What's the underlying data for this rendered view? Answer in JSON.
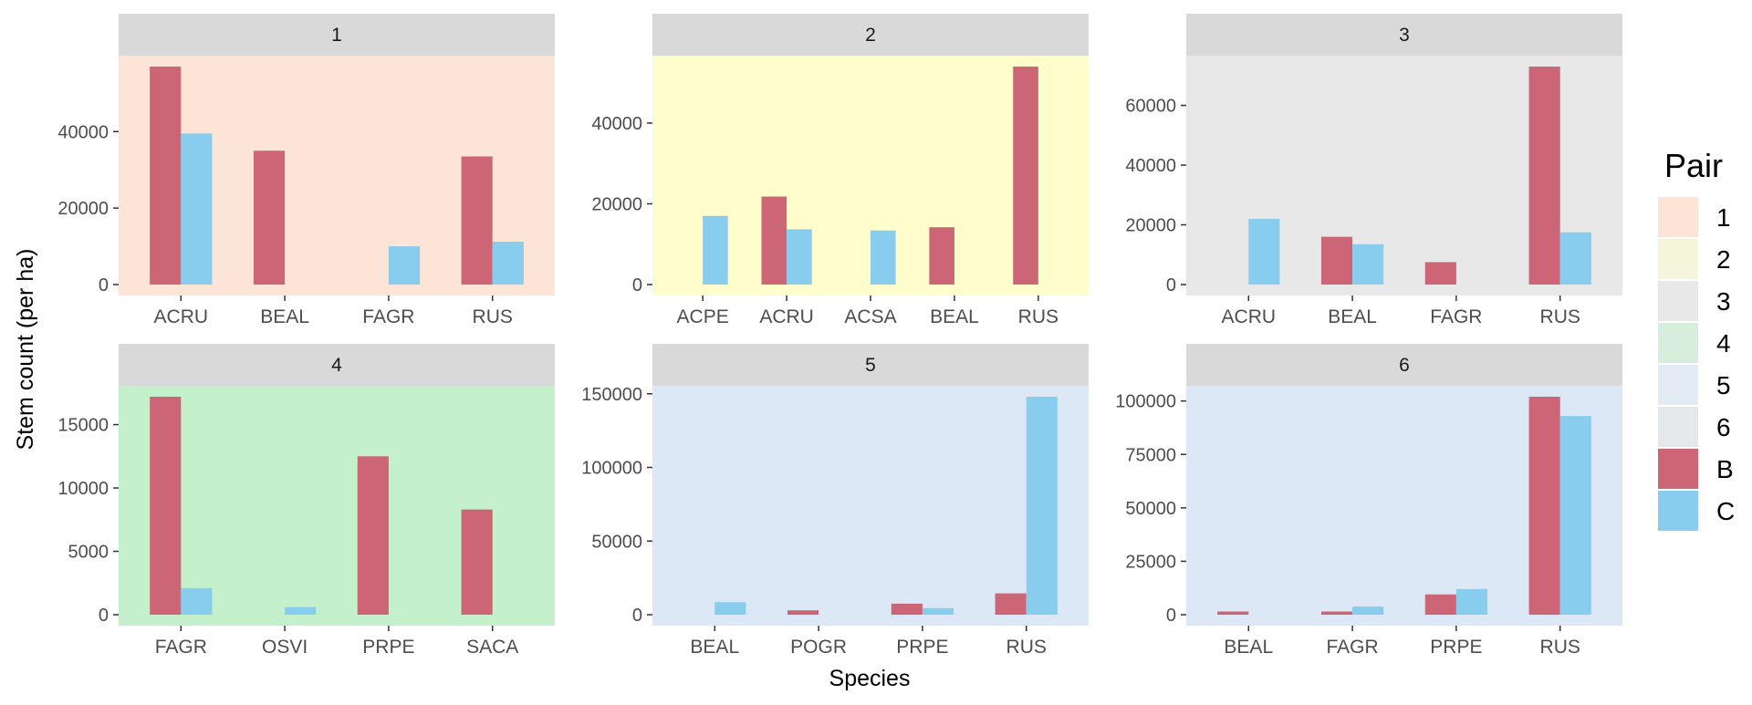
{
  "chart_data": {
    "type": "bar",
    "layout": "facet grid 2 rows x 3 columns, free scales",
    "xlabel": "Species",
    "ylabel": "Stem count (per ha)",
    "legend": {
      "title": "Pair",
      "placement": "right",
      "panel_entries": [
        {
          "label": "1",
          "color": "#FBE3D6"
        },
        {
          "label": "2",
          "color": "#F5F5DC"
        },
        {
          "label": "3",
          "color": "#E8E8E8"
        },
        {
          "label": "4",
          "color": "#D6EEDB"
        },
        {
          "label": "5",
          "color": "#E3EBF4"
        },
        {
          "label": "6",
          "color": "#E5E7EB"
        }
      ],
      "series_entries": [
        {
          "label": "B",
          "color": "#CC6677"
        },
        {
          "label": "C",
          "color": "#88CCEE"
        }
      ]
    },
    "strip_color": "#D9D9D9",
    "panels": [
      {
        "strip": "1",
        "bg": "#FCE4D6",
        "ylim": [
          0,
          57000
        ],
        "yticks": [
          "0",
          "20000",
          "40000"
        ],
        "ytick_values": [
          0,
          20000,
          40000
        ],
        "categories": [
          "ACRU",
          "BEAL",
          "FAGR",
          "RUS"
        ],
        "series": [
          {
            "name": "B",
            "color": "#CC6677",
            "values": [
              57000,
              35000,
              null,
              33500
            ]
          },
          {
            "name": "C",
            "color": "#88CCEE",
            "values": [
              39500,
              null,
              10000,
              11200
            ]
          }
        ]
      },
      {
        "strip": "2",
        "bg": "#FFFDCC",
        "ylim": [
          0,
          54000
        ],
        "yticks": [
          "0",
          "20000",
          "40000"
        ],
        "ytick_values": [
          0,
          20000,
          40000
        ],
        "categories": [
          "ACPE",
          "ACRU",
          "ACSA",
          "BEAL",
          "RUS"
        ],
        "series": [
          {
            "name": "B",
            "color": "#CC6677",
            "values": [
              null,
              21800,
              null,
              14200,
              54000
            ]
          },
          {
            "name": "C",
            "color": "#88CCEE",
            "values": [
              17000,
              13700,
              13400,
              null,
              null
            ]
          }
        ]
      },
      {
        "strip": "3",
        "bg": "#E8E8E8",
        "ylim": [
          0,
          73000
        ],
        "yticks": [
          "0",
          "20000",
          "40000",
          "60000"
        ],
        "ytick_values": [
          0,
          20000,
          40000,
          60000
        ],
        "categories": [
          "ACRU",
          "BEAL",
          "FAGR",
          "RUS"
        ],
        "series": [
          {
            "name": "B",
            "color": "#CC6677",
            "values": [
              null,
              16000,
              7500,
              73000
            ]
          },
          {
            "name": "C",
            "color": "#88CCEE",
            "values": [
              22000,
              13500,
              null,
              17500
            ]
          }
        ]
      },
      {
        "strip": "4",
        "bg": "#C4F0CB",
        "ylim": [
          0,
          17200
        ],
        "yticks": [
          "0",
          "5000",
          "10000",
          "15000"
        ],
        "ytick_values": [
          0,
          5000,
          10000,
          15000
        ],
        "categories": [
          "FAGR",
          "OSVI",
          "PRPE",
          "SACA"
        ],
        "series": [
          {
            "name": "B",
            "color": "#CC6677",
            "values": [
              17200,
              null,
              12500,
              8300
            ]
          },
          {
            "name": "C",
            "color": "#88CCEE",
            "values": [
              2100,
              600,
              null,
              null
            ]
          }
        ]
      },
      {
        "strip": "5",
        "bg": "#DCE8F5",
        "ylim": [
          0,
          148000
        ],
        "yticks": [
          "0",
          "50000",
          "100000",
          "150000"
        ],
        "ytick_values": [
          0,
          50000,
          100000,
          150000
        ],
        "categories": [
          "BEAL",
          "POGR",
          "PRPE",
          "RUS"
        ],
        "series": [
          {
            "name": "B",
            "color": "#CC6677",
            "values": [
              null,
              3000,
              7500,
              14500
            ]
          },
          {
            "name": "C",
            "color": "#88CCEE",
            "values": [
              8500,
              null,
              4500,
              148000
            ]
          }
        ]
      },
      {
        "strip": "6",
        "bg": "#DCE8F5",
        "ylim": [
          0,
          102000
        ],
        "yticks": [
          "0",
          "25000",
          "50000",
          "75000",
          "100000"
        ],
        "ytick_values": [
          0,
          25000,
          50000,
          75000,
          100000
        ],
        "categories": [
          "BEAL",
          "FAGR",
          "PRPE",
          "RUS"
        ],
        "series": [
          {
            "name": "B",
            "color": "#CC6677",
            "values": [
              1500,
              1500,
              9500,
              102000
            ]
          },
          {
            "name": "C",
            "color": "#88CCEE",
            "values": [
              null,
              3800,
              12000,
              93000
            ]
          }
        ]
      }
    ]
  }
}
